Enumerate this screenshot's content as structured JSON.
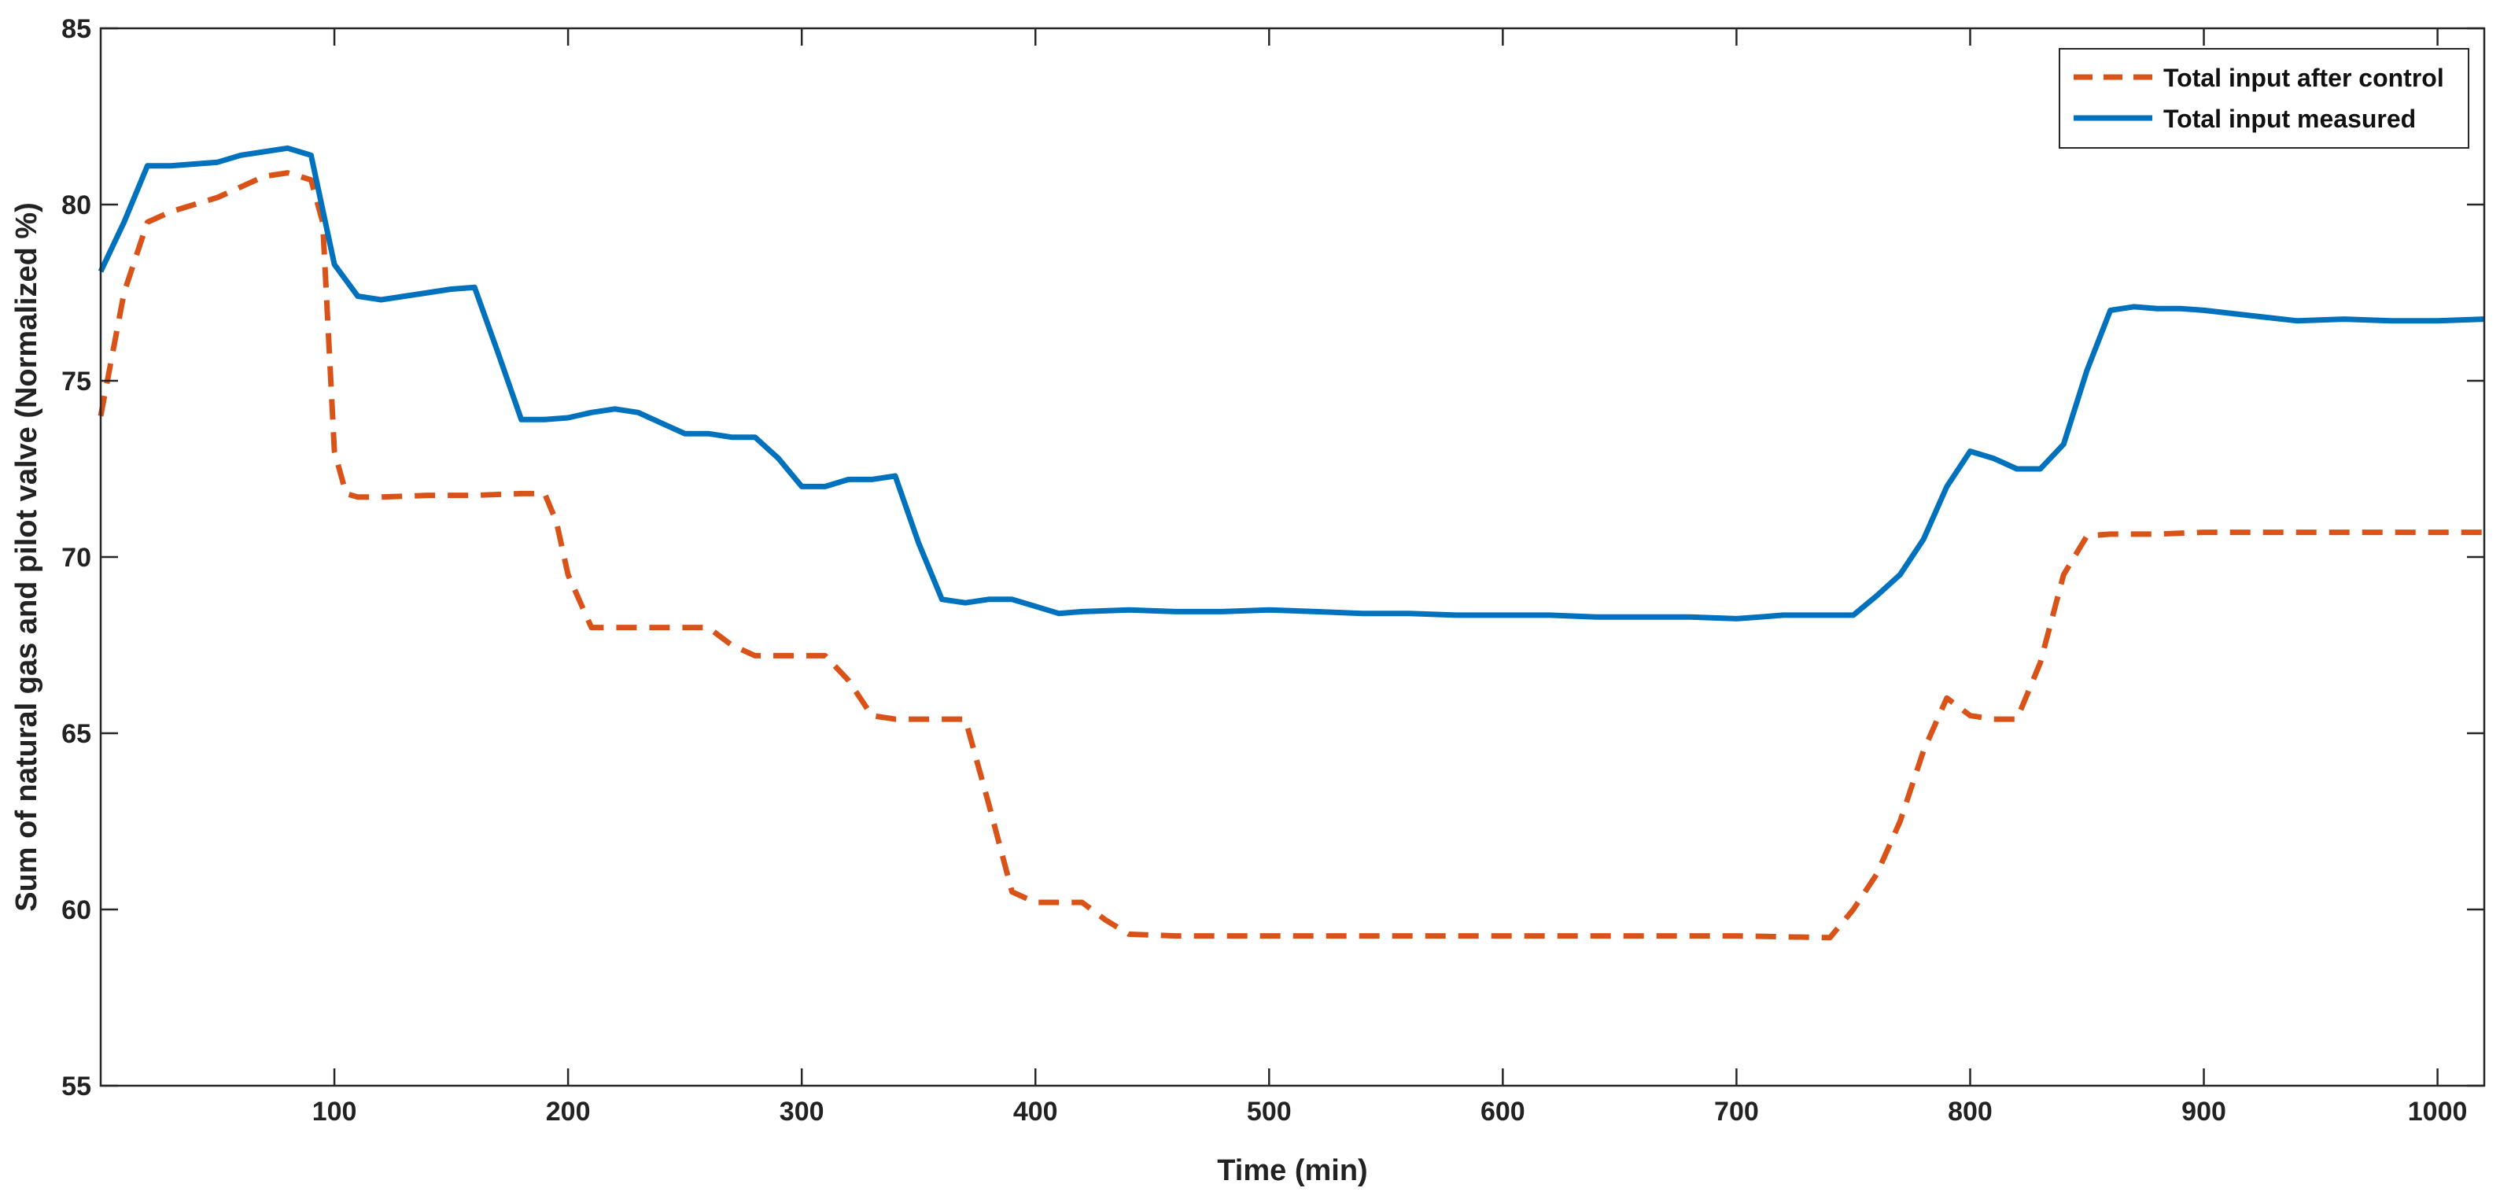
{
  "chart_data": {
    "type": "line",
    "xlabel": "Time (min)",
    "ylabel": "Sum of natural gas and pilot valve (Normalized %)",
    "xlim": [
      0,
      1020
    ],
    "ylim": [
      55,
      85
    ],
    "xticks": [
      100,
      200,
      300,
      400,
      500,
      600,
      700,
      800,
      900,
      1000
    ],
    "yticks": [
      55,
      60,
      65,
      70,
      75,
      80,
      85
    ],
    "grid": false,
    "legend_position": "top-right",
    "series": [
      {
        "name": "Total input after control",
        "color": "#D95319",
        "dash": "dashed",
        "points": [
          [
            0,
            74.0
          ],
          [
            10,
            77.5
          ],
          [
            20,
            79.5
          ],
          [
            30,
            79.8
          ],
          [
            40,
            80.0
          ],
          [
            50,
            80.2
          ],
          [
            60,
            80.5
          ],
          [
            70,
            80.8
          ],
          [
            80,
            80.9
          ],
          [
            90,
            80.7
          ],
          [
            95,
            79.5
          ],
          [
            100,
            73.0
          ],
          [
            105,
            71.8
          ],
          [
            110,
            71.7
          ],
          [
            120,
            71.7
          ],
          [
            140,
            71.75
          ],
          [
            160,
            71.75
          ],
          [
            180,
            71.8
          ],
          [
            190,
            71.8
          ],
          [
            195,
            71.0
          ],
          [
            200,
            69.5
          ],
          [
            210,
            68.0
          ],
          [
            220,
            68.0
          ],
          [
            240,
            68.0
          ],
          [
            260,
            68.0
          ],
          [
            270,
            67.5
          ],
          [
            280,
            67.2
          ],
          [
            300,
            67.2
          ],
          [
            310,
            67.2
          ],
          [
            320,
            66.5
          ],
          [
            330,
            65.5
          ],
          [
            340,
            65.4
          ],
          [
            360,
            65.4
          ],
          [
            370,
            65.4
          ],
          [
            380,
            63.0
          ],
          [
            390,
            60.5
          ],
          [
            400,
            60.2
          ],
          [
            420,
            60.2
          ],
          [
            430,
            59.7
          ],
          [
            440,
            59.3
          ],
          [
            460,
            59.25
          ],
          [
            500,
            59.25
          ],
          [
            550,
            59.25
          ],
          [
            600,
            59.25
          ],
          [
            650,
            59.25
          ],
          [
            700,
            59.25
          ],
          [
            740,
            59.2
          ],
          [
            750,
            60.0
          ],
          [
            760,
            61.0
          ],
          [
            770,
            62.5
          ],
          [
            780,
            64.5
          ],
          [
            790,
            66.0
          ],
          [
            800,
            65.5
          ],
          [
            810,
            65.4
          ],
          [
            820,
            65.4
          ],
          [
            830,
            67.0
          ],
          [
            840,
            69.5
          ],
          [
            850,
            70.6
          ],
          [
            860,
            70.65
          ],
          [
            880,
            70.65
          ],
          [
            900,
            70.7
          ],
          [
            950,
            70.7
          ],
          [
            1000,
            70.7
          ],
          [
            1020,
            70.7
          ]
        ]
      },
      {
        "name": "Total input measured",
        "color": "#0072BD",
        "dash": "solid",
        "points": [
          [
            0,
            78.1
          ],
          [
            10,
            79.5
          ],
          [
            20,
            81.1
          ],
          [
            30,
            81.1
          ],
          [
            40,
            81.15
          ],
          [
            50,
            81.2
          ],
          [
            60,
            81.4
          ],
          [
            70,
            81.5
          ],
          [
            80,
            81.6
          ],
          [
            90,
            81.4
          ],
          [
            100,
            78.3
          ],
          [
            110,
            77.4
          ],
          [
            120,
            77.3
          ],
          [
            130,
            77.4
          ],
          [
            140,
            77.5
          ],
          [
            150,
            77.6
          ],
          [
            160,
            77.65
          ],
          [
            170,
            75.8
          ],
          [
            180,
            73.9
          ],
          [
            190,
            73.9
          ],
          [
            200,
            73.95
          ],
          [
            210,
            74.1
          ],
          [
            220,
            74.2
          ],
          [
            230,
            74.1
          ],
          [
            240,
            73.8
          ],
          [
            250,
            73.5
          ],
          [
            260,
            73.5
          ],
          [
            270,
            73.4
          ],
          [
            280,
            73.4
          ],
          [
            290,
            72.8
          ],
          [
            300,
            72.0
          ],
          [
            310,
            72.0
          ],
          [
            320,
            72.2
          ],
          [
            330,
            72.2
          ],
          [
            340,
            72.3
          ],
          [
            350,
            70.4
          ],
          [
            360,
            68.8
          ],
          [
            370,
            68.7
          ],
          [
            380,
            68.8
          ],
          [
            390,
            68.8
          ],
          [
            400,
            68.6
          ],
          [
            410,
            68.4
          ],
          [
            420,
            68.45
          ],
          [
            440,
            68.5
          ],
          [
            460,
            68.45
          ],
          [
            480,
            68.45
          ],
          [
            500,
            68.5
          ],
          [
            520,
            68.45
          ],
          [
            540,
            68.4
          ],
          [
            560,
            68.4
          ],
          [
            580,
            68.35
          ],
          [
            600,
            68.35
          ],
          [
            620,
            68.35
          ],
          [
            640,
            68.3
          ],
          [
            660,
            68.3
          ],
          [
            680,
            68.3
          ],
          [
            700,
            68.25
          ],
          [
            710,
            68.3
          ],
          [
            720,
            68.35
          ],
          [
            740,
            68.35
          ],
          [
            750,
            68.35
          ],
          [
            760,
            68.9
          ],
          [
            770,
            69.5
          ],
          [
            780,
            70.5
          ],
          [
            790,
            72.0
          ],
          [
            800,
            73.0
          ],
          [
            810,
            72.8
          ],
          [
            820,
            72.5
          ],
          [
            830,
            72.5
          ],
          [
            840,
            73.2
          ],
          [
            850,
            75.3
          ],
          [
            860,
            77.0
          ],
          [
            870,
            77.1
          ],
          [
            880,
            77.05
          ],
          [
            890,
            77.05
          ],
          [
            900,
            77.0
          ],
          [
            920,
            76.85
          ],
          [
            940,
            76.7
          ],
          [
            960,
            76.75
          ],
          [
            980,
            76.7
          ],
          [
            1000,
            76.7
          ],
          [
            1020,
            76.75
          ]
        ]
      }
    ]
  }
}
